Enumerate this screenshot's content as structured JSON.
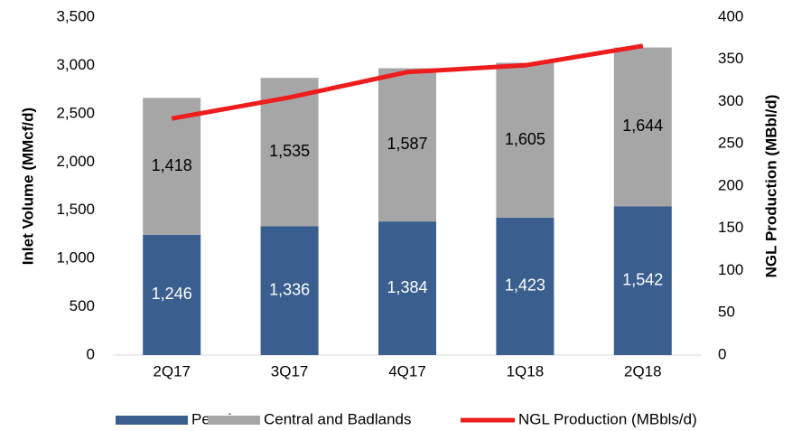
{
  "chart_data": {
    "type": "bar",
    "categories": [
      "2Q17",
      "3Q17",
      "4Q17",
      "1Q18",
      "2Q18"
    ],
    "stacked": true,
    "series": [
      {
        "name": "Permian",
        "color": "#3a5f8f",
        "values": [
          1246,
          1336,
          1384,
          1423,
          1542
        ],
        "value_labels": [
          "1,246",
          "1,336",
          "1,384",
          "1,423",
          "1,542"
        ]
      },
      {
        "name": "Central and Badlands",
        "color": "#a6a6a6",
        "values": [
          1418,
          1535,
          1587,
          1605,
          1644
        ],
        "value_labels": [
          "1,418",
          "1,535",
          "1,587",
          "1,605",
          "1,644"
        ]
      },
      {
        "name": "NGL Production (MBbls/d)",
        "color": "#ee1c1c",
        "type": "line",
        "axis": "y2",
        "values": [
          280,
          305,
          335,
          343,
          366
        ]
      }
    ],
    "ylabel": "Inlet Volume (MMcf/d)",
    "y2label": "NGL Production (MBbl/d)",
    "ylim": [
      0,
      3500
    ],
    "yticks": [
      0,
      500,
      {
        "value": 1000,
        "label": "1,000"
      },
      {
        "value": 1500,
        "label": "1,500"
      },
      {
        "value": 2000,
        "label": "2,000"
      },
      {
        "value": 2500,
        "label": "2,500"
      },
      {
        "value": 3000,
        "label": "3,000"
      },
      {
        "value": 3500,
        "label": "3,500"
      }
    ],
    "y2lim": [
      0,
      400
    ],
    "y2ticks": [
      0,
      50,
      100,
      150,
      200,
      250,
      300,
      350,
      400
    ],
    "legend": "bottom"
  }
}
